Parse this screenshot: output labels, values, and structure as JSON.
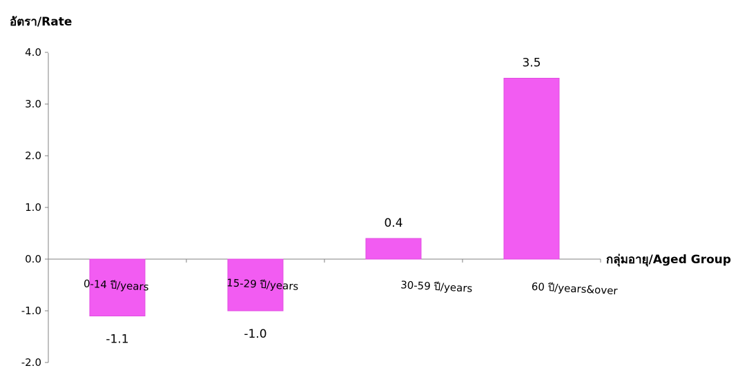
{
  "chart_data": {
    "type": "bar",
    "categories": [
      "0-14 ปี/years",
      "15-29 ปี/years",
      "30-59 ปี/years",
      "60 ปี/years&over"
    ],
    "values": [
      -1.1,
      -1.0,
      0.4,
      3.5
    ],
    "data_labels": [
      "-1.1",
      "-1.0",
      "0.4",
      "3.5"
    ],
    "ylabel": "อัตรา/Rate",
    "xlabel": "กลุ่มอายุ/Aged Group",
    "ylim": [
      -2.0,
      4.0
    ],
    "yticks": [
      "-2.0",
      "-1.0",
      "0.0",
      "1.0",
      "2.0",
      "3.0",
      "4.0"
    ],
    "bar_color": "#f25cf2",
    "bar_edge_color": "#e04ce0",
    "grid": false
  }
}
